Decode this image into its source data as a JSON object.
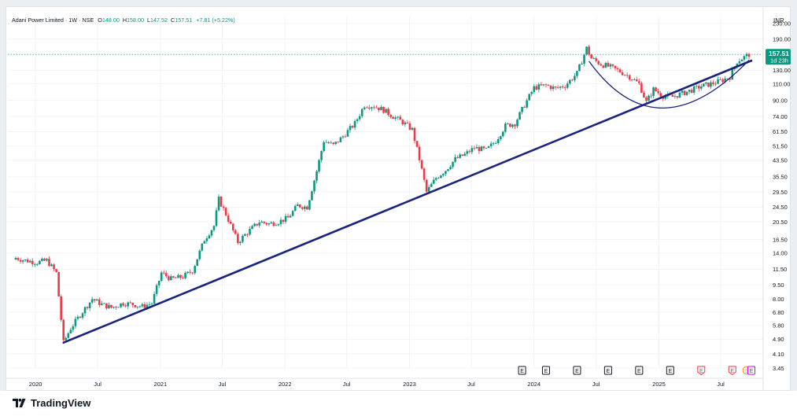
{
  "header": {
    "symbol": "Adani Power Limited · 1W · NSE",
    "open_label": "O",
    "open": "148.00",
    "high_label": "H",
    "high": "158.00",
    "low_label": "L",
    "low": "147.52",
    "close_label": "C",
    "close": "157.51",
    "change": "+7.81 (+5.22%)"
  },
  "currency": "INR",
  "price_tag": {
    "price": "157.51",
    "countdown": "1d 23h"
  },
  "footer": {
    "brand": "TradingView"
  },
  "colors": {
    "up": "#089981",
    "down": "#f23645",
    "trendline": "#1a237e",
    "arc": "#1a237e",
    "last_price": "#089981"
  },
  "chart_data": {
    "type": "candlestick",
    "y_scale": "log",
    "ylim": [
      3.45,
      250
    ],
    "y_ticks": [
      "230.00",
      "190.00",
      "157.51",
      "130.00",
      "110.00",
      "90.00",
      "74.00",
      "61.50",
      "51.50",
      "43.50",
      "35.50",
      "29.50",
      "24.50",
      "20.50",
      "16.50",
      "14.00",
      "11.50",
      "9.50",
      "8.00",
      "6.80",
      "5.80",
      "4.90",
      "4.10",
      "3.45"
    ],
    "x_labels": [
      "2020",
      "Jul",
      "2021",
      "Jul",
      "2022",
      "Jul",
      "2023",
      "Jul",
      "2024",
      "Jul",
      "2025",
      "Jul"
    ],
    "x_start": "2019-11-04",
    "x_end": "2025-09-22",
    "price_path": [
      [
        "2019-11-04",
        13.2
      ],
      [
        "2019-12-02",
        12.8
      ],
      [
        "2020-01-06",
        12.5
      ],
      [
        "2020-02-03",
        12.8
      ],
      [
        "2020-03-02",
        11.0
      ],
      [
        "2020-03-23",
        4.7
      ],
      [
        "2020-04-13",
        5.6
      ],
      [
        "2020-05-11",
        6.6
      ],
      [
        "2020-06-15",
        8.0
      ],
      [
        "2020-07-13",
        7.5
      ],
      [
        "2020-08-10",
        7.2
      ],
      [
        "2020-09-14",
        7.6
      ],
      [
        "2020-10-12",
        7.5
      ],
      [
        "2020-11-09",
        7.3
      ],
      [
        "2020-12-07",
        7.6
      ],
      [
        "2021-01-04",
        11.0
      ],
      [
        "2021-02-01",
        10.2
      ],
      [
        "2021-03-08",
        10.5
      ],
      [
        "2021-04-05",
        11.3
      ],
      [
        "2021-05-10",
        16.5
      ],
      [
        "2021-06-07",
        19.5
      ],
      [
        "2021-06-21",
        27.0
      ],
      [
        "2021-07-12",
        22.5
      ],
      [
        "2021-08-16",
        16.0
      ],
      [
        "2021-09-13",
        18.0
      ],
      [
        "2021-10-18",
        20.5
      ],
      [
        "2021-11-15",
        20.0
      ],
      [
        "2021-12-13",
        20.5
      ],
      [
        "2022-01-10",
        21.5
      ],
      [
        "2022-02-07",
        25.0
      ],
      [
        "2022-03-07",
        24.5
      ],
      [
        "2022-04-04",
        38.0
      ],
      [
        "2022-04-25",
        55.0
      ],
      [
        "2022-05-23",
        52.0
      ],
      [
        "2022-06-20",
        58.0
      ],
      [
        "2022-07-25",
        68.0
      ],
      [
        "2022-08-22",
        85.0
      ],
      [
        "2022-09-19",
        84.0
      ],
      [
        "2022-10-17",
        80.0
      ],
      [
        "2022-11-14",
        74.0
      ],
      [
        "2022-12-12",
        69.0
      ],
      [
        "2023-01-09",
        63.0
      ],
      [
        "2023-01-30",
        44.0
      ],
      [
        "2023-02-20",
        29.5
      ],
      [
        "2023-03-20",
        35.0
      ],
      [
        "2023-04-17",
        38.5
      ],
      [
        "2023-05-15",
        44.0
      ],
      [
        "2023-06-12",
        46.5
      ],
      [
        "2023-07-10",
        50.5
      ],
      [
        "2023-08-14",
        49.0
      ],
      [
        "2023-09-11",
        55.0
      ],
      [
        "2023-10-09",
        66.0
      ],
      [
        "2023-11-06",
        68.0
      ],
      [
        "2023-12-04",
        85.0
      ],
      [
        "2024-01-01",
        105.0
      ],
      [
        "2024-02-05",
        108.0
      ],
      [
        "2024-03-04",
        104.0
      ],
      [
        "2024-04-01",
        108.0
      ],
      [
        "2024-05-06",
        125.0
      ],
      [
        "2024-06-03",
        170.0
      ],
      [
        "2024-06-17",
        150.0
      ],
      [
        "2024-07-15",
        140.0
      ],
      [
        "2024-08-12",
        135.0
      ],
      [
        "2024-09-09",
        128.0
      ],
      [
        "2024-10-07",
        120.0
      ],
      [
        "2024-11-04",
        110.0
      ],
      [
        "2024-11-25",
        88.0
      ],
      [
        "2024-12-16",
        103.0
      ],
      [
        "2025-01-13",
        95.0
      ],
      [
        "2025-02-10",
        94.0
      ],
      [
        "2025-03-10",
        98.0
      ],
      [
        "2025-04-07",
        102.0
      ],
      [
        "2025-05-05",
        107.0
      ],
      [
        "2025-06-02",
        110.0
      ],
      [
        "2025-06-30",
        114.0
      ],
      [
        "2025-07-28",
        120.0
      ],
      [
        "2025-08-18",
        145.0
      ],
      [
        "2025-09-01",
        150.0
      ],
      [
        "2025-09-22",
        157.5
      ]
    ],
    "last_price": 157.51,
    "trendline": {
      "from": [
        "2020-03-23",
        4.7
      ],
      "to": [
        "2025-09-29",
        146.0
      ]
    },
    "cup_arc": {
      "left": [
        "2024-06-10",
        145.0
      ],
      "bottom": [
        "2025-01-13",
        82.0
      ],
      "right": [
        "2025-09-22",
        147.0
      ]
    },
    "events": [
      {
        "date": "2023-11-27",
        "label": "E",
        "kind": "earnings"
      },
      {
        "date": "2024-02-05",
        "label": "E",
        "kind": "earnings"
      },
      {
        "date": "2024-05-06",
        "label": "E",
        "kind": "earnings"
      },
      {
        "date": "2024-08-05",
        "label": "E",
        "kind": "earnings"
      },
      {
        "date": "2024-11-04",
        "label": "E",
        "kind": "earnings"
      },
      {
        "date": "2025-02-03",
        "label": "E",
        "kind": "earnings"
      },
      {
        "date": "2025-05-05",
        "label": "E",
        "kind": "earnings-miss"
      },
      {
        "date": "2025-08-04",
        "label": "E",
        "kind": "earnings-miss"
      },
      {
        "date": "2025-09-15",
        "label": "S",
        "kind": "split"
      },
      {
        "date": "2025-09-29",
        "label": "E",
        "kind": "earnings-upcoming"
      }
    ]
  }
}
